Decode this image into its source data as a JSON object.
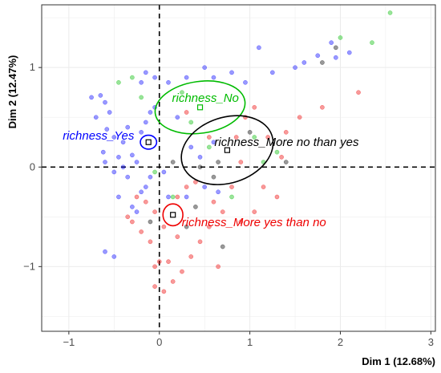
{
  "chart_data": {
    "type": "scatter",
    "title": "",
    "xlabel": "Dim 1 (12.68%)",
    "ylabel": "Dim 2 (12.47%)",
    "xlim": [
      -1.3,
      3.05
    ],
    "ylim": [
      -1.65,
      1.63
    ],
    "x_ticks": [
      -1,
      0,
      1,
      2,
      3
    ],
    "y_ticks": [
      -1,
      0,
      1
    ],
    "grid": true,
    "reference_lines": {
      "x": 0,
      "y": 0,
      "style": "dashed"
    },
    "series": [
      {
        "name": "richness_Yes",
        "color": "#0000ff",
        "centroid": {
          "x": -0.12,
          "y": 0.25
        },
        "ellipse": {
          "rx": 0.09,
          "ry": 0.07
        },
        "points": [
          {
            "x": -0.75,
            "y": 0.7
          },
          {
            "x": -0.65,
            "y": 0.72
          },
          {
            "x": -0.6,
            "y": 0.65
          },
          {
            "x": -0.55,
            "y": 0.55
          },
          {
            "x": -0.58,
            "y": 0.38
          },
          {
            "x": -0.5,
            "y": 0.3
          },
          {
            "x": -0.62,
            "y": 0.15
          },
          {
            "x": -0.6,
            "y": 0.05
          },
          {
            "x": -0.45,
            "y": 0.1
          },
          {
            "x": -0.4,
            "y": 0.0
          },
          {
            "x": -0.5,
            "y": -0.05
          },
          {
            "x": -0.35,
            "y": -0.1
          },
          {
            "x": -0.3,
            "y": 0.12
          },
          {
            "x": -0.25,
            "y": 0.05
          },
          {
            "x": -0.2,
            "y": 0.35
          },
          {
            "x": -0.15,
            "y": 0.45
          },
          {
            "x": -0.1,
            "y": 0.55
          },
          {
            "x": -0.05,
            "y": 0.6
          },
          {
            "x": -0.2,
            "y": 0.85
          },
          {
            "x": -0.15,
            "y": 0.95
          },
          {
            "x": -0.05,
            "y": 0.9
          },
          {
            "x": 0.1,
            "y": 0.85
          },
          {
            "x": 0.3,
            "y": 0.9
          },
          {
            "x": 0.5,
            "y": 1.0
          },
          {
            "x": 0.6,
            "y": 0.9
          },
          {
            "x": 0.8,
            "y": 0.95
          },
          {
            "x": 0.95,
            "y": 0.85
          },
          {
            "x": 1.1,
            "y": 1.2
          },
          {
            "x": 1.25,
            "y": 0.95
          },
          {
            "x": 1.5,
            "y": 1.0
          },
          {
            "x": 1.6,
            "y": 1.05
          },
          {
            "x": 1.75,
            "y": 1.12
          },
          {
            "x": 1.9,
            "y": 1.25
          },
          {
            "x": 1.95,
            "y": 1.1
          },
          {
            "x": 2.1,
            "y": 1.15
          },
          {
            "x": 0.2,
            "y": 0.5
          },
          {
            "x": 0.35,
            "y": 0.2
          },
          {
            "x": 0.45,
            "y": 0.1
          },
          {
            "x": 0.6,
            "y": 0.25
          },
          {
            "x": 0.65,
            "y": -0.25
          },
          {
            "x": 0.5,
            "y": -0.2
          },
          {
            "x": 0.3,
            "y": -0.3
          },
          {
            "x": -0.3,
            "y": -0.4
          },
          {
            "x": -0.25,
            "y": -0.45
          },
          {
            "x": -0.45,
            "y": -0.3
          },
          {
            "x": -0.6,
            "y": -0.85
          },
          {
            "x": -0.5,
            "y": -0.9
          },
          {
            "x": -0.15,
            "y": -0.2
          },
          {
            "x": -0.2,
            "y": -0.25
          },
          {
            "x": -0.1,
            "y": -0.1
          },
          {
            "x": 0.05,
            "y": -0.05
          },
          {
            "x": 0.1,
            "y": -0.3
          },
          {
            "x": -0.7,
            "y": 0.5
          },
          {
            "x": -0.4,
            "y": 0.25
          },
          {
            "x": -0.35,
            "y": 0.4
          }
        ]
      },
      {
        "name": "richness_No",
        "color": "#00bb00",
        "centroid": {
          "x": 0.45,
          "y": 0.6
        },
        "ellipse": {
          "rx": 0.5,
          "ry": 0.26
        },
        "points": [
          {
            "x": -0.45,
            "y": 0.85
          },
          {
            "x": -0.3,
            "y": 0.9
          },
          {
            "x": -0.2,
            "y": 0.7
          },
          {
            "x": 0.35,
            "y": 0.45
          },
          {
            "x": 0.55,
            "y": 0.2
          },
          {
            "x": 1.05,
            "y": 0.3
          },
          {
            "x": 1.15,
            "y": 0.05
          },
          {
            "x": 1.3,
            "y": 0.15
          },
          {
            "x": 2.0,
            "y": 1.3
          },
          {
            "x": 2.35,
            "y": 1.25
          },
          {
            "x": 2.55,
            "y": 1.55
          },
          {
            "x": 0.8,
            "y": -0.3
          },
          {
            "x": 0.15,
            "y": -0.3
          },
          {
            "x": -0.05,
            "y": -0.05
          },
          {
            "x": 0.25,
            "y": 0.75
          }
        ]
      },
      {
        "name": "richness_More no than yes",
        "color": "#000000",
        "centroid": {
          "x": 0.75,
          "y": 0.17
        },
        "ellipse": {
          "rx": 0.52,
          "ry": 0.33
        },
        "points": [
          {
            "x": 1.8,
            "y": 1.05
          },
          {
            "x": 1.95,
            "y": 1.2
          },
          {
            "x": 0.45,
            "y": 0.0
          },
          {
            "x": 0.65,
            "y": 0.05
          },
          {
            "x": 1.0,
            "y": 0.35
          },
          {
            "x": 1.4,
            "y": 0.05
          },
          {
            "x": 0.4,
            "y": -0.4
          },
          {
            "x": 0.6,
            "y": -0.1
          },
          {
            "x": 0.15,
            "y": 0.05
          },
          {
            "x": 0.7,
            "y": -0.8
          },
          {
            "x": 0.3,
            "y": -0.6
          },
          {
            "x": -0.1,
            "y": -0.55
          }
        ]
      },
      {
        "name": "richness_More yes than no",
        "color": "#ee0000",
        "centroid": {
          "x": 0.15,
          "y": -0.48
        },
        "ellipse": {
          "rx": 0.11,
          "ry": 0.11
        },
        "points": [
          {
            "x": 2.2,
            "y": 0.75
          },
          {
            "x": 1.8,
            "y": 0.6
          },
          {
            "x": 1.55,
            "y": 0.5
          },
          {
            "x": 1.4,
            "y": 0.35
          },
          {
            "x": 1.2,
            "y": 0.3
          },
          {
            "x": 1.05,
            "y": 0.6
          },
          {
            "x": 0.95,
            "y": 0.5
          },
          {
            "x": 0.85,
            "y": 0.3
          },
          {
            "x": 1.15,
            "y": -0.2
          },
          {
            "x": 1.3,
            "y": -0.3
          },
          {
            "x": 1.05,
            "y": -0.45
          },
          {
            "x": 0.9,
            "y": -0.55
          },
          {
            "x": 0.8,
            "y": -0.2
          },
          {
            "x": 0.7,
            "y": -0.45
          },
          {
            "x": 0.55,
            "y": -0.6
          },
          {
            "x": 0.45,
            "y": -0.75
          },
          {
            "x": 0.35,
            "y": -0.9
          },
          {
            "x": 0.25,
            "y": -1.05
          },
          {
            "x": 0.15,
            "y": -1.15
          },
          {
            "x": 0.05,
            "y": -1.25
          },
          {
            "x": -0.05,
            "y": -1.2
          },
          {
            "x": 0.1,
            "y": -0.95
          },
          {
            "x": -0.1,
            "y": -0.75
          },
          {
            "x": -0.2,
            "y": -0.65
          },
          {
            "x": -0.3,
            "y": -0.55
          },
          {
            "x": -0.35,
            "y": -0.5
          },
          {
            "x": -0.25,
            "y": -0.3
          },
          {
            "x": -0.15,
            "y": -0.35
          },
          {
            "x": -0.05,
            "y": -0.45
          },
          {
            "x": 0.05,
            "y": -0.6
          },
          {
            "x": 0.2,
            "y": -0.3
          },
          {
            "x": 0.3,
            "y": -0.2
          },
          {
            "x": 0.4,
            "y": -0.15
          },
          {
            "x": 0.6,
            "y": -0.35
          },
          {
            "x": 0.65,
            "y": -1.0
          },
          {
            "x": 0.0,
            "y": -0.95
          },
          {
            "x": -0.05,
            "y": -1.0
          },
          {
            "x": 0.2,
            "y": -0.7
          },
          {
            "x": 0.55,
            "y": 0.3
          },
          {
            "x": 0.3,
            "y": 0.55
          },
          {
            "x": 1.35,
            "y": 0.1
          },
          {
            "x": 0.9,
            "y": 0.05
          }
        ]
      }
    ]
  }
}
